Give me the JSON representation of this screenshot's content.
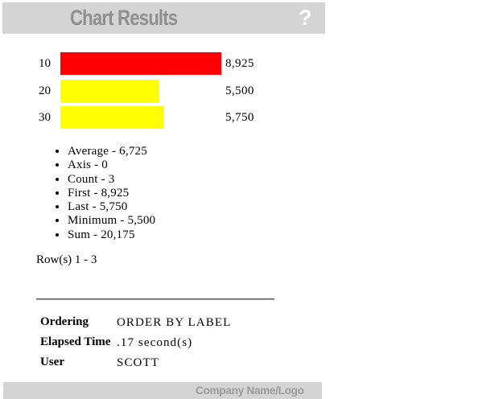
{
  "header": {
    "title": "Chart Results",
    "help_label": "?"
  },
  "chart_data": {
    "type": "bar",
    "orientation": "horizontal",
    "categories": [
      "10",
      "20",
      "30"
    ],
    "values": [
      8925,
      5500,
      5750
    ],
    "value_labels": [
      "8,925",
      "5,500",
      "5,750"
    ],
    "colors": [
      "#ff0000",
      "#ffff00",
      "#ffff00"
    ],
    "title": "Chart Results",
    "xlabel": "",
    "ylabel": "",
    "xlim": [
      0,
      8925
    ],
    "grid": false,
    "legend": false
  },
  "summary": {
    "items": [
      "Average - 6,725",
      "Axis - 0",
      "Count - 3",
      "First - 8,925",
      "Last - 5,750",
      "Minimum - 5,500",
      "Sum - 20,175"
    ]
  },
  "pagination": {
    "text": "Row(s) 1 - 3"
  },
  "details": {
    "rows": [
      {
        "label": "Ordering",
        "value": "ORDER BY LABEL"
      },
      {
        "label": "Elapsed Time",
        "value": ".17 second(s)"
      },
      {
        "label": "User",
        "value": "SCOTT"
      }
    ]
  },
  "footer": {
    "company": "Company Name/Logo"
  },
  "colors": {
    "banner_bg": "#d4d4d4",
    "banner_text": "#8f8f8f",
    "help_text": "#ffffff",
    "bar_red": "#ff0000",
    "bar_yellow": "#ffff00"
  }
}
